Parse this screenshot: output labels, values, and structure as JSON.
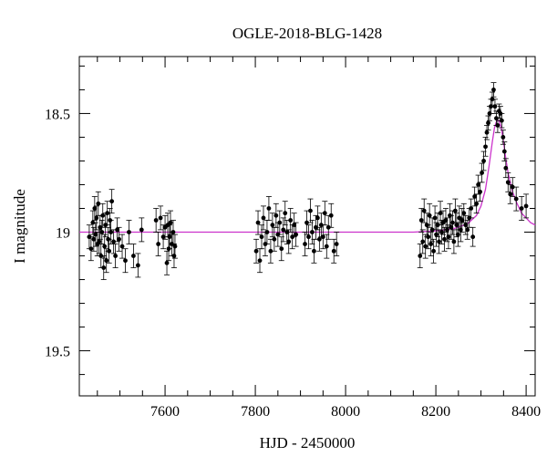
{
  "chart_data": {
    "type": "scatter",
    "title": "OGLE-2018-BLG-1428",
    "xlabel": "HJD - 2450000",
    "ylabel": "I magnitude",
    "xlim": [
      7410,
      8420
    ],
    "ylim": [
      19.69,
      18.26
    ],
    "y_inverted": true,
    "x_ticks": [
      7600,
      7800,
      8000,
      8200,
      8400
    ],
    "x_tick_labels": [
      "7600",
      "7800",
      "8000",
      "8200",
      "8400"
    ],
    "y_ticks": [
      18.5,
      19,
      19.5
    ],
    "y_tick_labels": [
      "18.5",
      "19",
      "19.5"
    ],
    "grid": false,
    "colors": {
      "points": "#000000",
      "model": "#cc33cc",
      "frame": "#000000"
    },
    "series": [
      {
        "role": "observations",
        "x": [
          7432,
          7436,
          7440,
          7442,
          7444,
          7446,
          7448,
          7450,
          7452,
          7454,
          7456,
          7458,
          7460,
          7462,
          7464,
          7466,
          7468,
          7470,
          7472,
          7474,
          7476,
          7478,
          7480,
          7482,
          7486,
          7490,
          7494,
          7498,
          7505,
          7512,
          7520,
          7530,
          7540,
          7548,
          7580,
          7585,
          7590,
          7596,
          7600,
          7604,
          7606,
          7608,
          7610,
          7612,
          7615,
          7618,
          7620,
          7622,
          7802,
          7806,
          7810,
          7814,
          7818,
          7822,
          7826,
          7830,
          7834,
          7838,
          7842,
          7846,
          7850,
          7854,
          7858,
          7862,
          7866,
          7870,
          7874,
          7878,
          7882,
          7886,
          7890,
          7910,
          7914,
          7918,
          7922,
          7926,
          7930,
          7934,
          7938,
          7942,
          7946,
          7950,
          7954,
          7958,
          7962,
          7968,
          7974,
          7980,
          8165,
          8168,
          8171,
          8174,
          8177,
          8180,
          8183,
          8186,
          8189,
          8192,
          8195,
          8198,
          8201,
          8204,
          8207,
          8210,
          8213,
          8216,
          8219,
          8222,
          8225,
          8228,
          8231,
          8234,
          8237,
          8240,
          8243,
          8246,
          8249,
          8252,
          8255,
          8258,
          8262,
          8266,
          8270,
          8274,
          8278,
          8282,
          8286,
          8290,
          8294,
          8298,
          8302,
          8306,
          8310,
          8313,
          8316,
          8319,
          8322,
          8325,
          8328,
          8331,
          8334,
          8337,
          8340,
          8343,
          8346,
          8349,
          8352,
          8355,
          8360,
          8365,
          8370,
          8378,
          8390,
          8400
        ],
        "y": [
          19.02,
          19.07,
          18.96,
          19.03,
          18.9,
          19.01,
          18.94,
          19.05,
          18.88,
          19.04,
          18.98,
          19.1,
          19.0,
          18.93,
          19.15,
          19.06,
          18.97,
          19.12,
          18.92,
          19.03,
          19.08,
          18.95,
          19.0,
          18.87,
          19.04,
          19.1,
          18.99,
          19.03,
          19.06,
          19.12,
          19.0,
          19.1,
          19.14,
          18.99,
          18.95,
          19.05,
          18.94,
          19.02,
          18.98,
          19.13,
          18.97,
          19.07,
          19.02,
          18.96,
          19.05,
          19.0,
          19.1,
          19.06,
          19.08,
          18.96,
          19.12,
          19.02,
          18.94,
          19.05,
          19.0,
          18.9,
          19.08,
          18.97,
          19.03,
          18.93,
          19.01,
          18.96,
          19.07,
          18.99,
          18.92,
          19.0,
          19.04,
          18.95,
          19.02,
          18.97,
          19.01,
          19.05,
          18.96,
          19.02,
          18.91,
          19.0,
          19.08,
          18.98,
          18.94,
          19.03,
          18.97,
          19.02,
          18.92,
          19.06,
          18.98,
          18.93,
          19.08,
          19.05,
          19.1,
          18.95,
          19.04,
          18.91,
          19.06,
          18.97,
          19.02,
          18.93,
          19.05,
          18.99,
          19.08,
          18.94,
          19.01,
          18.97,
          19.04,
          18.92,
          19.0,
          18.96,
          19.03,
          18.95,
          18.99,
          19.02,
          18.93,
          18.98,
          18.96,
          19.04,
          18.91,
          18.97,
          19.01,
          18.94,
          18.99,
          18.95,
          18.92,
          18.97,
          18.99,
          18.94,
          18.9,
          19.02,
          18.85,
          18.88,
          18.8,
          18.83,
          18.75,
          18.7,
          18.64,
          18.58,
          18.54,
          18.5,
          18.47,
          18.44,
          18.4,
          18.47,
          18.52,
          18.55,
          18.49,
          18.5,
          18.53,
          18.6,
          18.66,
          18.73,
          18.79,
          18.84,
          18.81,
          18.86,
          18.9,
          18.89
        ],
        "yerr": [
          0.05,
          0.05,
          0.05,
          0.05,
          0.05,
          0.05,
          0.05,
          0.05,
          0.05,
          0.05,
          0.05,
          0.05,
          0.05,
          0.05,
          0.05,
          0.05,
          0.05,
          0.05,
          0.05,
          0.05,
          0.05,
          0.05,
          0.05,
          0.05,
          0.05,
          0.05,
          0.05,
          0.05,
          0.05,
          0.05,
          0.05,
          0.05,
          0.05,
          0.05,
          0.05,
          0.05,
          0.05,
          0.05,
          0.05,
          0.05,
          0.05,
          0.05,
          0.05,
          0.05,
          0.05,
          0.05,
          0.05,
          0.05,
          0.05,
          0.05,
          0.05,
          0.05,
          0.05,
          0.05,
          0.05,
          0.05,
          0.05,
          0.05,
          0.05,
          0.05,
          0.05,
          0.05,
          0.05,
          0.05,
          0.05,
          0.05,
          0.05,
          0.05,
          0.05,
          0.05,
          0.05,
          0.05,
          0.05,
          0.05,
          0.05,
          0.05,
          0.05,
          0.05,
          0.05,
          0.05,
          0.05,
          0.05,
          0.05,
          0.05,
          0.05,
          0.05,
          0.05,
          0.05,
          0.05,
          0.05,
          0.05,
          0.05,
          0.05,
          0.05,
          0.05,
          0.05,
          0.05,
          0.05,
          0.05,
          0.05,
          0.05,
          0.05,
          0.05,
          0.05,
          0.05,
          0.05,
          0.05,
          0.05,
          0.05,
          0.05,
          0.05,
          0.05,
          0.05,
          0.05,
          0.05,
          0.05,
          0.05,
          0.05,
          0.05,
          0.05,
          0.04,
          0.04,
          0.04,
          0.04,
          0.04,
          0.04,
          0.04,
          0.04,
          0.04,
          0.04,
          0.04,
          0.04,
          0.04,
          0.03,
          0.03,
          0.03,
          0.03,
          0.03,
          0.03,
          0.03,
          0.03,
          0.03,
          0.03,
          0.03,
          0.03,
          0.03,
          0.04,
          0.04,
          0.04,
          0.04,
          0.04,
          0.05,
          0.05,
          0.05
        ]
      },
      {
        "role": "model",
        "x": [
          7410,
          8150,
          8200,
          8240,
          8270,
          8290,
          8300,
          8310,
          8318,
          8325,
          8330,
          8335,
          8340,
          8345,
          8350,
          8355,
          8360,
          8370,
          8380,
          8390,
          8400,
          8410,
          8420
        ],
        "y": [
          19.0,
          19.0,
          18.995,
          18.985,
          18.965,
          18.93,
          18.89,
          18.82,
          18.72,
          18.62,
          18.56,
          18.53,
          18.53,
          18.56,
          18.62,
          18.69,
          18.75,
          18.83,
          18.88,
          18.92,
          18.94,
          18.96,
          18.97
        ]
      }
    ]
  }
}
